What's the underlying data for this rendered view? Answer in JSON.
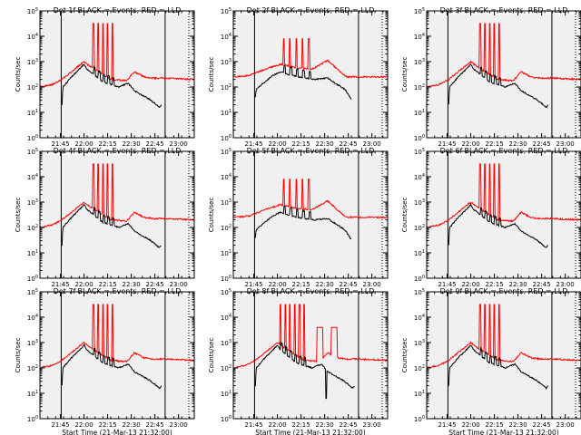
{
  "chart_data": {
    "type": "line",
    "yscale": "log",
    "ylim": [
      1,
      100000
    ],
    "xlabel": "Start Time (21-Mar-13 21:32:00)",
    "ylabel": "Counts/sec",
    "x_ticks": [
      "21:45",
      "22:00",
      "22:15",
      "22:30",
      "22:45",
      "23:00"
    ],
    "x_ticks_min": [
      13,
      28,
      43,
      58,
      73,
      88
    ],
    "y_ticks": [
      "10^0",
      "10^1",
      "10^2",
      "10^3",
      "10^4",
      "10^5"
    ],
    "y_tick_exps": [
      0,
      1,
      2,
      3,
      4,
      5
    ],
    "xlim_min": [
      0,
      98
    ],
    "vertical_lines_min": [
      13.5,
      79.5
    ],
    "series_colors": {
      "events": "#000000",
      "lld": "#ff0000"
    },
    "panels": [
      {
        "title": "Det 1f-BLACK = Events, RED = LLD",
        "variant": "normal"
      },
      {
        "title": "Det 2f-BLACK = Events, RED = LLD",
        "variant": "det2"
      },
      {
        "title": "Det 3f-BLACK = Events, RED = LLD",
        "variant": "normal"
      },
      {
        "title": "Det 4f-BLACK = Events, RED = LLD",
        "variant": "normal"
      },
      {
        "title": "Det 5f-BLACK = Events, RED = LLD",
        "variant": "det2"
      },
      {
        "title": "Det 6f-BLACK = Events, RED = LLD",
        "variant": "normal"
      },
      {
        "title": "Det 7f-BLACK = Events, RED = LLD",
        "variant": "normal"
      },
      {
        "title": "Det 8f-BLACK = Events, RED = LLD",
        "variant": "det8"
      },
      {
        "title": "Det 9f-BLACK = Events, RED = LLD",
        "variant": "normal"
      }
    ],
    "profile": {
      "events_log10": [
        [
          14,
          1.3
        ],
        [
          14.5,
          2.0
        ],
        [
          16,
          2.1
        ],
        [
          20,
          2.4
        ],
        [
          25,
          2.7
        ],
        [
          28,
          2.9
        ],
        [
          30,
          2.7
        ],
        [
          40,
          2.2
        ],
        [
          50,
          2.0
        ],
        [
          56,
          2.15
        ],
        [
          60,
          1.85
        ],
        [
          70,
          1.5
        ],
        [
          76,
          1.2
        ],
        [
          77,
          1.3
        ]
      ],
      "lld_log10": [
        [
          0,
          2.0
        ],
        [
          8,
          2.1
        ],
        [
          14,
          2.3
        ],
        [
          20,
          2.6
        ],
        [
          28,
          3.0
        ],
        [
          32,
          2.8
        ],
        [
          45,
          2.3
        ],
        [
          55,
          2.25
        ],
        [
          60,
          2.6
        ],
        [
          66,
          2.4
        ],
        [
          72,
          2.35
        ],
        [
          80,
          2.35
        ],
        [
          98,
          2.3
        ]
      ],
      "spikes_min": [
        34,
        37,
        40,
        43,
        46
      ],
      "spike_top_log10": 4.5
    },
    "det2_profile": {
      "events_log10": [
        [
          14,
          1.6
        ],
        [
          14.5,
          1.9
        ],
        [
          18,
          2.1
        ],
        [
          25,
          2.45
        ],
        [
          30,
          2.6
        ],
        [
          34,
          2.5
        ],
        [
          45,
          2.35
        ],
        [
          52,
          2.3
        ],
        [
          60,
          2.35
        ],
        [
          66,
          2.1
        ],
        [
          71,
          1.9
        ],
        [
          75,
          1.5
        ]
      ],
      "lld_log10": [
        [
          0,
          2.4
        ],
        [
          10,
          2.45
        ],
        [
          20,
          2.7
        ],
        [
          30,
          2.9
        ],
        [
          40,
          2.75
        ],
        [
          50,
          2.7
        ],
        [
          60,
          3.05
        ],
        [
          66,
          2.7
        ],
        [
          72,
          2.4
        ],
        [
          80,
          2.4
        ],
        [
          98,
          2.4
        ]
      ],
      "spikes_min": [
        32,
        36,
        40,
        44,
        48
      ],
      "spike_top_log10": 3.9
    },
    "det8_profile": {
      "events_log10": [
        [
          14,
          1.3
        ],
        [
          14.5,
          2.0
        ],
        [
          16,
          2.1
        ],
        [
          20,
          2.4
        ],
        [
          25,
          2.7
        ],
        [
          28,
          2.9
        ],
        [
          30,
          2.7
        ],
        [
          40,
          2.2
        ],
        [
          50,
          2.0
        ],
        [
          56,
          2.15
        ],
        [
          60,
          1.85
        ],
        [
          70,
          1.5
        ],
        [
          76,
          1.2
        ],
        [
          77,
          1.3
        ]
      ],
      "lld_log10": [
        [
          0,
          2.0
        ],
        [
          8,
          2.1
        ],
        [
          14,
          2.3
        ],
        [
          20,
          2.6
        ],
        [
          28,
          3.0
        ],
        [
          32,
          2.8
        ],
        [
          45,
          2.3
        ],
        [
          55,
          2.25
        ],
        [
          60,
          2.6
        ],
        [
          66,
          2.4
        ],
        [
          72,
          2.35
        ],
        [
          80,
          2.35
        ],
        [
          98,
          2.3
        ]
      ],
      "spikes_min": [
        30,
        33,
        36,
        39,
        42,
        45
      ],
      "spike_top_log10": 4.5,
      "plateaus_min": [
        [
          53,
          57
        ],
        [
          62,
          66
        ]
      ],
      "plateau_log10": 3.6,
      "dip_min": 59,
      "dip_log10": 0.8
    }
  }
}
